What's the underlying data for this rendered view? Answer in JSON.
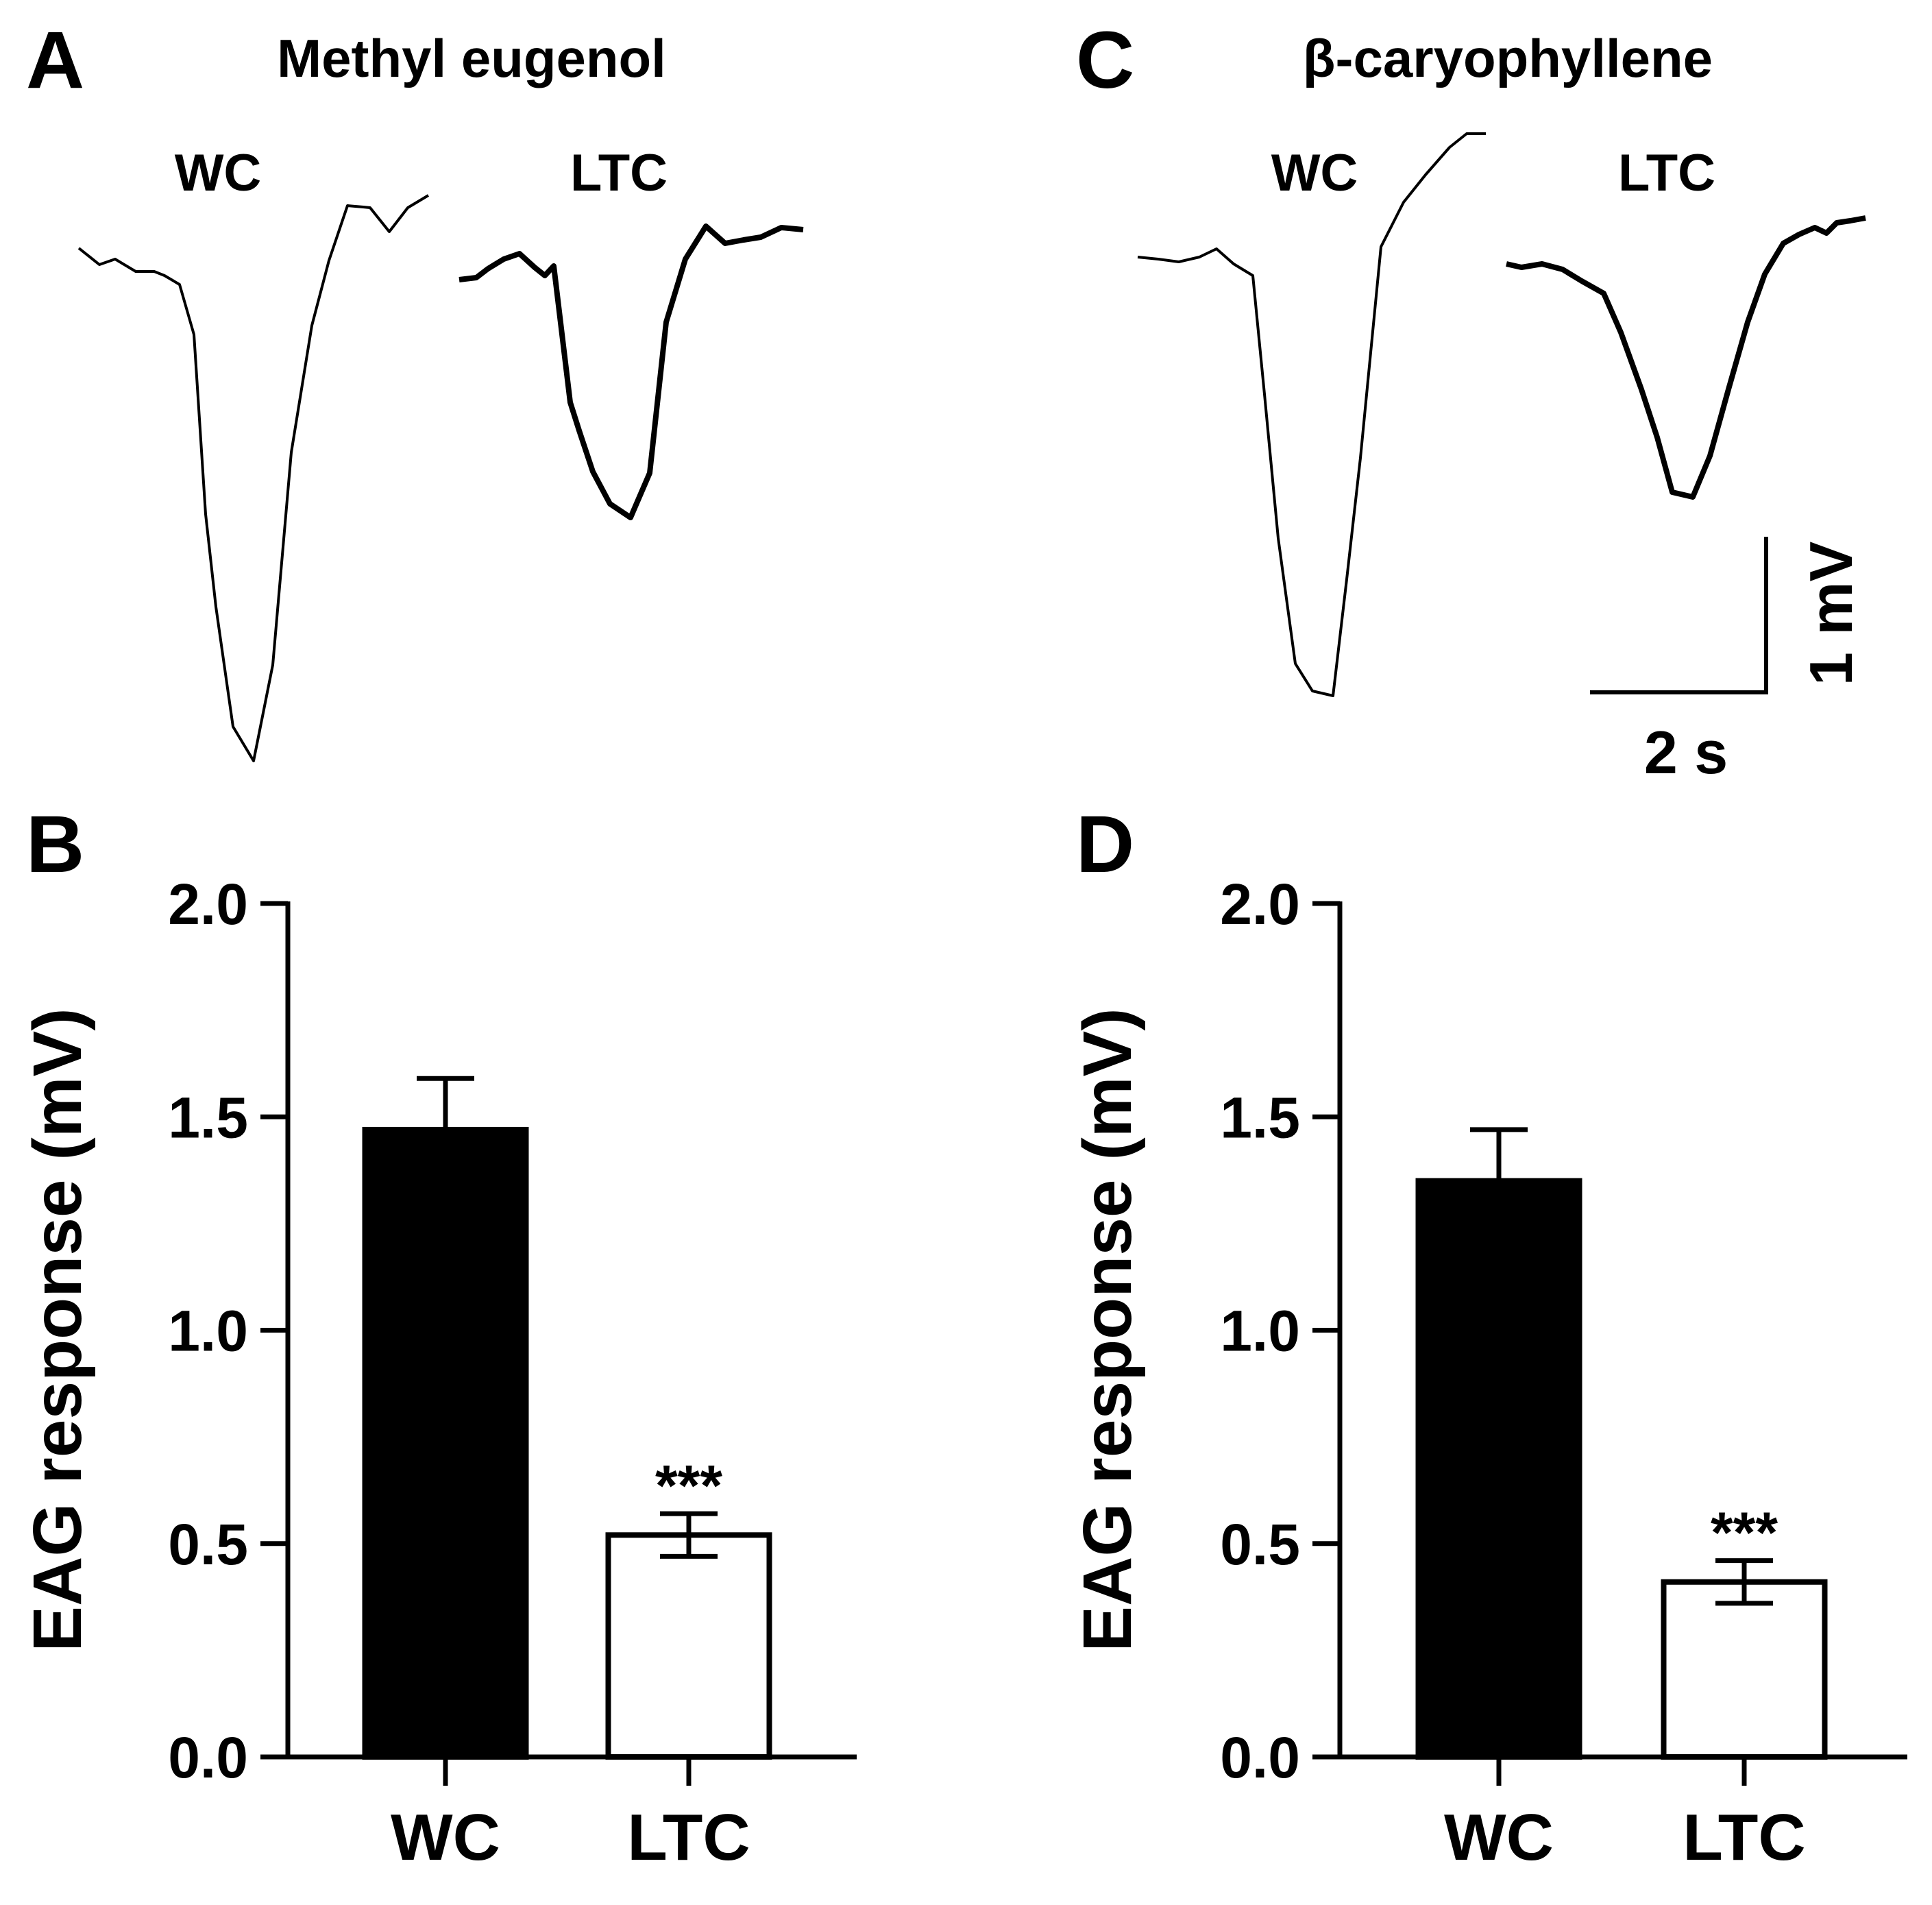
{
  "panels": {
    "A": {
      "letter": "A",
      "title": "Methyl eugenol",
      "wc_label": "WC",
      "ltc_label": "LTC"
    },
    "B": {
      "letter": "B"
    },
    "C": {
      "letter": "C",
      "title": "β-caryophyllene",
      "wc_label": "WC",
      "ltc_label": "LTC"
    },
    "D": {
      "letter": "D"
    }
  },
  "scale_bar": {
    "voltage_label": "1 mV",
    "time_label": "2 s"
  },
  "colors": {
    "wc_fill": "#000000",
    "ltc_fill": "#ffffff",
    "stroke": "#000000"
  },
  "chart_data": [
    {
      "panel": "B",
      "type": "bar",
      "categories": [
        "WC",
        "LTC"
      ],
      "values": [
        1.47,
        0.52
      ],
      "errors": [
        0.12,
        0.05
      ],
      "significance": [
        "",
        "***"
      ],
      "ylabel": "EAG response (mV)",
      "ylim": [
        0,
        2.0
      ],
      "yticks": [
        0.0,
        0.5,
        1.0,
        1.5,
        2.0
      ],
      "ytick_labels": [
        "0.0",
        "0.5",
        "1.0",
        "1.5",
        "2.0"
      ]
    },
    {
      "panel": "D",
      "type": "bar",
      "categories": [
        "WC",
        "LTC"
      ],
      "values": [
        1.35,
        0.41
      ],
      "errors": [
        0.12,
        0.05
      ],
      "significance": [
        "",
        "***"
      ],
      "ylabel": "EAG response (mV)",
      "ylim": [
        0,
        2.0
      ],
      "yticks": [
        0.0,
        0.5,
        1.0,
        1.5,
        2.0
      ],
      "ytick_labels": [
        "0.0",
        "0.5",
        "1.0",
        "1.5",
        "2.0"
      ]
    }
  ]
}
